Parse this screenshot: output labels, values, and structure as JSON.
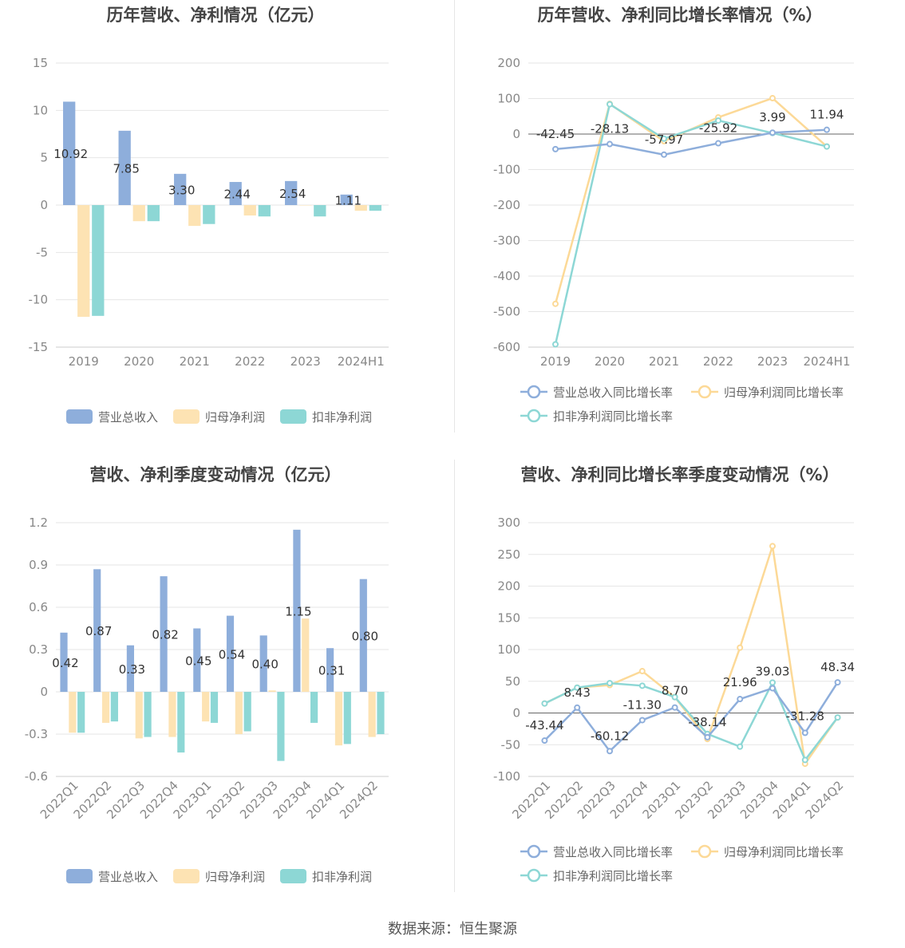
{
  "source": "数据来源：恒生聚源",
  "colors": {
    "revenue": "#8eaedb",
    "net_profit": "#fde3b3",
    "deducted_profit": "#8dd7d5",
    "revenue_line": "#8eaedb",
    "net_profit_line": "#fcd997",
    "deducted_line": "#8dd7d5"
  },
  "chart_data": [
    {
      "type": "bar",
      "title": "历年营收、净利情况（亿元）",
      "categories": [
        "2019",
        "2020",
        "2021",
        "2022",
        "2023",
        "2024H1"
      ],
      "ylim": [
        -15,
        15
      ],
      "yticks": [
        15,
        10,
        5,
        0,
        -5,
        -10,
        -15
      ],
      "series": [
        {
          "name": "营业总收入",
          "values": [
            10.92,
            7.85,
            3.3,
            2.44,
            2.54,
            1.11
          ],
          "labels": [
            "10.92",
            "7.85",
            "3.30",
            "2.44",
            "2.54",
            "1.11"
          ]
        },
        {
          "name": "归母净利润",
          "values": [
            -11.8,
            -1.7,
            -2.2,
            -1.1,
            0,
            -0.6
          ]
        },
        {
          "name": "扣非净利润",
          "values": [
            -11.7,
            -1.7,
            -2.0,
            -1.2,
            -1.2,
            -0.6
          ]
        }
      ],
      "legend": [
        "营业总收入",
        "归母净利润",
        "扣非净利润"
      ]
    },
    {
      "type": "line",
      "title": "历年营收、净利同比增长率情况（%）",
      "categories": [
        "2019",
        "2020",
        "2021",
        "2022",
        "2023",
        "2024H1"
      ],
      "ylim": [
        -600,
        200
      ],
      "yticks": [
        200,
        100,
        0,
        -100,
        -200,
        -300,
        -400,
        -500,
        -600
      ],
      "series": [
        {
          "name": "营业总收入同比增长率",
          "values": [
            -42.45,
            -28.13,
            -57.97,
            -25.92,
            3.99,
            11.94
          ],
          "labels": [
            "-42.45",
            "-28.13",
            "-57.97",
            "-25.92",
            "3.99",
            "11.94"
          ]
        },
        {
          "name": "归母净利润同比增长率",
          "values": [
            -478,
            85,
            -20,
            47,
            101,
            -35
          ]
        },
        {
          "name": "扣非净利润同比增长率",
          "values": [
            -592,
            84,
            -13,
            38,
            3,
            -35
          ]
        }
      ],
      "legend": [
        "营业总收入同比增长率",
        "归母净利润同比增长率",
        "扣非净利润同比增长率"
      ]
    },
    {
      "type": "bar",
      "title": "营收、净利季度变动情况（亿元）",
      "categories": [
        "2022Q1",
        "2022Q2",
        "2022Q3",
        "2022Q4",
        "2023Q1",
        "2023Q2",
        "2023Q3",
        "2023Q4",
        "2024Q1",
        "2024Q2"
      ],
      "ylim": [
        -0.6,
        1.2
      ],
      "yticks": [
        1.2,
        0.9,
        0.6,
        0.3,
        0,
        -0.3,
        -0.6
      ],
      "series": [
        {
          "name": "营业总收入",
          "values": [
            0.42,
            0.87,
            0.33,
            0.82,
            0.45,
            0.54,
            0.4,
            1.15,
            0.31,
            0.8
          ],
          "labels": [
            "0.42",
            "0.87",
            "0.33",
            "0.82",
            "0.45",
            "0.54",
            "0.40",
            "1.15",
            "0.31",
            "0.80"
          ]
        },
        {
          "name": "归母净利润",
          "values": [
            -0.29,
            -0.22,
            -0.33,
            -0.32,
            -0.21,
            -0.3,
            0.01,
            0.52,
            -0.38,
            -0.32
          ]
        },
        {
          "name": "扣非净利润",
          "values": [
            -0.29,
            -0.21,
            -0.32,
            -0.43,
            -0.22,
            -0.28,
            -0.49,
            -0.22,
            -0.37,
            -0.3
          ]
        }
      ],
      "legend": [
        "营业总收入",
        "归母净利润",
        "扣非净利润"
      ]
    },
    {
      "type": "line",
      "title": "营收、净利同比增长率季度变动情况（%）",
      "categories": [
        "2022Q1",
        "2022Q2",
        "2022Q3",
        "2022Q4",
        "2023Q1",
        "2023Q2",
        "2023Q3",
        "2023Q4",
        "2024Q1",
        "2024Q2"
      ],
      "ylim": [
        -100,
        300
      ],
      "yticks": [
        300,
        250,
        200,
        150,
        100,
        50,
        0,
        -50,
        -100
      ],
      "series": [
        {
          "name": "营业总收入同比增长率",
          "values": [
            -43.44,
            8.43,
            -60.12,
            -11.3,
            8.7,
            -38.14,
            21.96,
            39.03,
            -31.28,
            48.34
          ],
          "labels": [
            "-43.44",
            "8.43",
            "-60.12",
            "-11.30",
            "8.70",
            "-38.14",
            "21.96",
            "39.03",
            "-31.28",
            "48.34"
          ]
        },
        {
          "name": "归母净利润同比增长率",
          "values": [
            15,
            40,
            44,
            66,
            25,
            -41,
            103,
            263,
            -80,
            -7
          ]
        },
        {
          "name": "扣非净利润同比增长率",
          "values": [
            15,
            40,
            47,
            43,
            25,
            -33,
            -53,
            48,
            -74,
            -7
          ]
        }
      ],
      "legend": [
        "营业总收入同比增长率",
        "归母净利润同比增长率",
        "扣非净利润同比增长率"
      ]
    }
  ]
}
